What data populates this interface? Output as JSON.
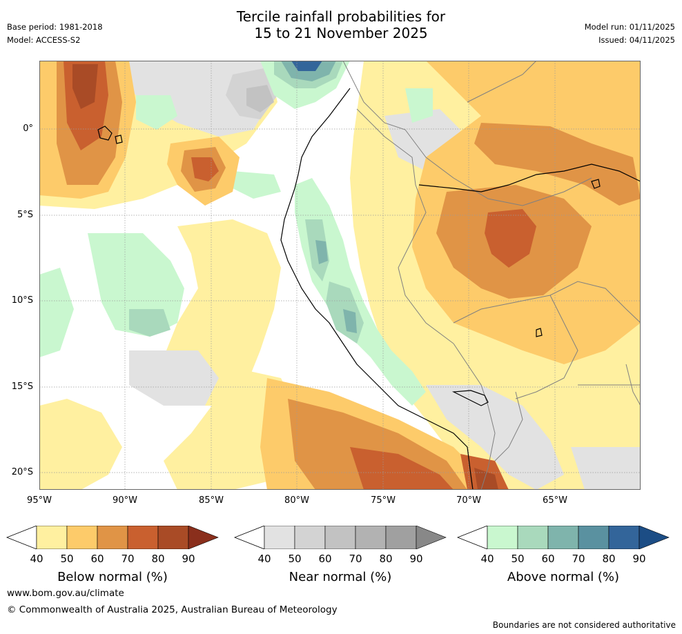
{
  "header": {
    "title_line1": "Tercile rainfall probabilities for",
    "title_line2": "15 to 21 November 2025",
    "base_period": "Base period: 1981-2018",
    "model": "Model: ACCESS-S2",
    "model_run": "Model run: 01/11/2025",
    "issued": "Issued: 04/11/2025"
  },
  "map": {
    "lat_labels": [
      "0°",
      "5°S",
      "10°S",
      "15°S",
      "20°S"
    ],
    "lon_labels": [
      "95°W",
      "90°W",
      "85°W",
      "80°W",
      "75°W",
      "70°W",
      "65°W"
    ],
    "colors": {
      "below": [
        "#fff0a0",
        "#fdcb6a",
        "#e09446",
        "#c9602f",
        "#a94b26",
        "#8a2f1c"
      ],
      "near": [
        "#e2e2e2",
        "#d3d3d3",
        "#c2c2c2",
        "#b2b2b2",
        "#a0a0a0",
        "#888888"
      ],
      "above": [
        "#c9f7cf",
        "#a9d9bc",
        "#7fb4ac",
        "#5a91a0",
        "#33659a",
        "#1c4d85"
      ],
      "coast": "#000000",
      "border": "#808080",
      "grid": "#9a9a9a"
    }
  },
  "legends": [
    {
      "name": "below",
      "label": "Below normal (%)",
      "ticks": [
        "40",
        "50",
        "60",
        "70",
        "80",
        "90"
      ]
    },
    {
      "name": "near",
      "label": "Near normal (%)",
      "ticks": [
        "40",
        "50",
        "60",
        "70",
        "80",
        "90"
      ]
    },
    {
      "name": "above",
      "label": "Above normal (%)",
      "ticks": [
        "40",
        "50",
        "60",
        "70",
        "80",
        "90"
      ]
    }
  ],
  "footer": {
    "url": "www.bom.gov.au/climate",
    "copyright": "© Commonwealth of Australia 2025, Australian Bureau of Meteorology",
    "disclaimer": "Boundaries are not considered authoritative"
  }
}
